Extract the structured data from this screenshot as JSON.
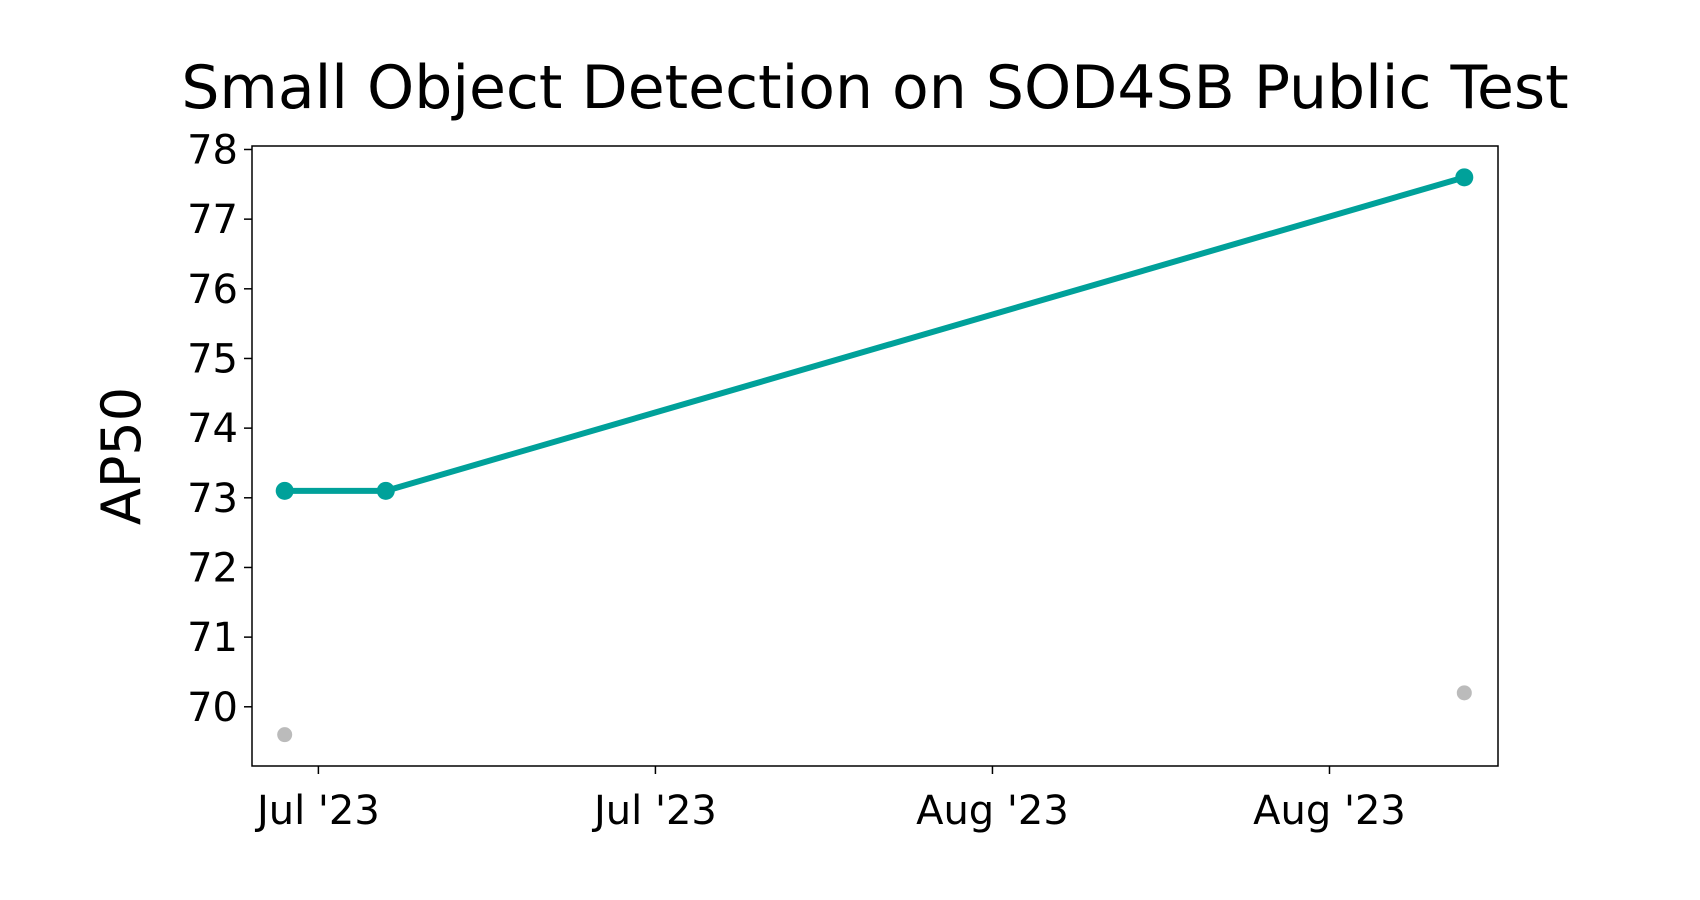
{
  "chart_data": {
    "type": "line",
    "title": "Small Object Detection on SOD4SB Public Test",
    "y_label": "AP50",
    "x": [
      -0.1,
      0.2,
      3.4
    ],
    "series": [
      {
        "color": "#00a19a",
        "values": [
          73.1,
          73.1,
          77.6
        ]
      },
      {
        "color": "#bbbbbb",
        "values": [
          69.6,
          null,
          70.2
        ],
        "markers_only": true
      }
    ],
    "xlim": [
      -0.197,
      3.5
    ],
    "xticks": [
      {
        "value": 0,
        "label": "Jul '23"
      },
      {
        "value": 1,
        "label": "Jul '23"
      },
      {
        "value": 2,
        "label": "Aug '23"
      },
      {
        "value": 3,
        "label": "Aug '23"
      }
    ],
    "ylim": [
      69.15,
      78.05
    ],
    "yticks": [
      70,
      71,
      72,
      73,
      74,
      75,
      76,
      77,
      78
    ],
    "grid": false
  }
}
